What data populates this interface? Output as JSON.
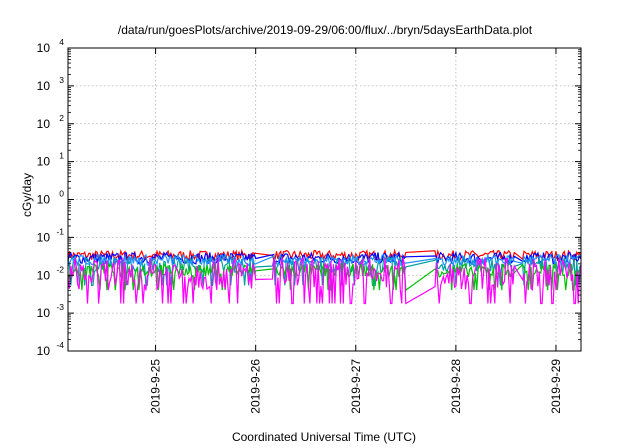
{
  "chart_data": {
    "type": "line",
    "title": "/data/run/goesPlots/archive/2019-09-29/06:00/flux/../bryn/5daysEarthData.plot",
    "xlabel": "Coordinated Universal Time (UTC)",
    "ylabel": "cGy/day",
    "yscale": "log",
    "ylim": [
      0.0001,
      10000
    ],
    "xlim": [
      "2019-09-24T03:00",
      "2019-09-29T06:00"
    ],
    "grid": true,
    "y_ticks": [
      {
        "base": "10",
        "exp": "4"
      },
      {
        "base": "10",
        "exp": "3"
      },
      {
        "base": "10",
        "exp": "2"
      },
      {
        "base": "10",
        "exp": "1"
      },
      {
        "base": "10",
        "exp": "0"
      },
      {
        "base": "10",
        "exp": "-1"
      },
      {
        "base": "10",
        "exp": "-2"
      },
      {
        "base": "10",
        "exp": "-3"
      },
      {
        "base": "10",
        "exp": "-4"
      }
    ],
    "x_ticks": [
      "2019-9-25",
      "2019-9-26",
      "2019-9-27",
      "2019-9-28",
      "2019-9-29"
    ],
    "gaps": [
      {
        "start": "2019-09-26T00:00",
        "end": "2019-09-26T04:00"
      },
      {
        "start": "2019-09-27T12:00",
        "end": "2019-09-27T19:00"
      },
      {
        "start": "2019-09-28T14:00",
        "end": "2019-09-28T16:00"
      }
    ],
    "series": [
      {
        "color": "#ff0000",
        "low": 0.025,
        "high": 0.045,
        "dips": false
      },
      {
        "color": "#0000ff",
        "low": 0.02,
        "high": 0.04,
        "dips": false
      },
      {
        "color": "#00a0a0",
        "low": 0.012,
        "high": 0.03,
        "dips": true
      },
      {
        "color": "#00c000",
        "low": 0.009,
        "high": 0.02,
        "dips": true
      },
      {
        "color": "#1e90ff",
        "low": 0.018,
        "high": 0.035,
        "dips": false
      },
      {
        "color": "#ff00ff",
        "low": 0.004,
        "high": 0.03,
        "dips": true
      }
    ]
  }
}
